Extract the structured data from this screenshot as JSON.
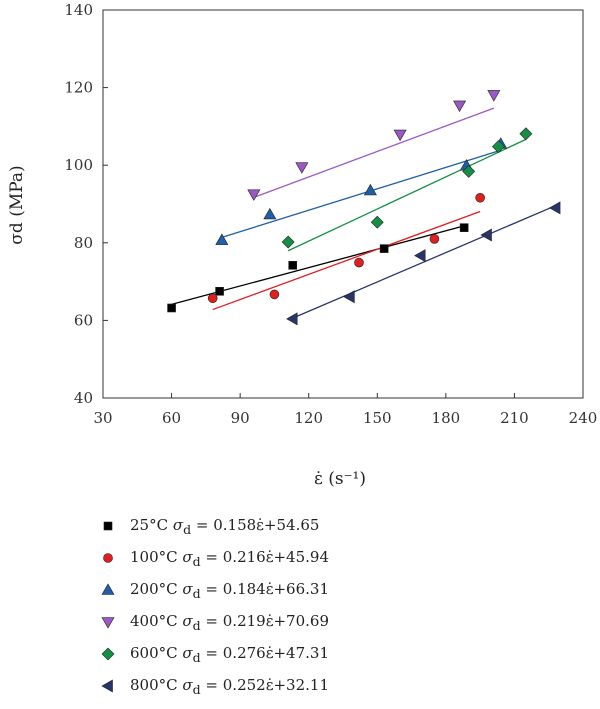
{
  "chart_data": {
    "type": "scatter",
    "xlabel": "ε̇ (s⁻¹)",
    "ylabel": "σd (MPa)",
    "xlim": [
      30,
      240
    ],
    "ylim": [
      40,
      140
    ],
    "xticks": [
      30,
      60,
      90,
      120,
      150,
      180,
      210,
      240
    ],
    "yticks": [
      40,
      60,
      80,
      100,
      120,
      140
    ],
    "grid": false,
    "legend_position": "below",
    "series": [
      {
        "name": "25°C σd = 0.158ε̇+54.65",
        "color": "#000000",
        "marker": "square",
        "points": [
          [
            60,
            63.2
          ],
          [
            81,
            67.5
          ],
          [
            113,
            74.2
          ],
          [
            153,
            78.5
          ],
          [
            188,
            83.9
          ]
        ],
        "fit": [
          [
            60,
            64.13
          ],
          [
            188,
            84.35
          ]
        ]
      },
      {
        "name": "100°C σd = 0.216ε̇+45.94",
        "color": "#e0201f",
        "marker": "circle",
        "points": [
          [
            78,
            65.7
          ],
          [
            105,
            66.7
          ],
          [
            142,
            74.9
          ],
          [
            175,
            81.0
          ],
          [
            195,
            91.6
          ]
        ],
        "fit": [
          [
            78,
            62.79
          ],
          [
            195,
            88.06
          ]
        ]
      },
      {
        "name": "200°C σd = 0.184ε̇+66.31",
        "color": "#1f5fa8",
        "marker": "triangle-up",
        "points": [
          [
            82,
            80.7
          ],
          [
            103,
            87.3
          ],
          [
            147,
            93.5
          ],
          [
            189,
            99.9
          ],
          [
            204,
            105.5
          ]
        ],
        "fit": [
          [
            82,
            81.4
          ],
          [
            204,
            103.85
          ]
        ]
      },
      {
        "name": "400°C σd = 0.219ε̇+70.69",
        "color": "#9b59c6",
        "marker": "triangle-down",
        "points": [
          [
            96,
            92.5
          ],
          [
            117,
            99.5
          ],
          [
            160,
            107.9
          ],
          [
            186,
            115.4
          ],
          [
            201,
            118.1
          ]
        ],
        "fit": [
          [
            96,
            91.71
          ],
          [
            201,
            114.71
          ]
        ]
      },
      {
        "name": "600°C σd = 0.276ε̇+47.31",
        "color": "#149046",
        "marker": "diamond",
        "points": [
          [
            111,
            80.2
          ],
          [
            150,
            85.3
          ],
          [
            190,
            98.4
          ],
          [
            203,
            104.8
          ],
          [
            215,
            108.1
          ]
        ],
        "fit": [
          [
            111,
            77.95
          ],
          [
            215,
            106.65
          ]
        ]
      },
      {
        "name": "800°C σd = 0.252ε̇+32.11",
        "color": "#27356b",
        "marker": "triangle-left",
        "points": [
          [
            113,
            60.4
          ],
          [
            138,
            66.1
          ],
          [
            169,
            76.7
          ],
          [
            198,
            82.0
          ],
          [
            228,
            89.0
          ]
        ],
        "fit": [
          [
            113,
            60.59
          ],
          [
            228,
            89.57
          ]
        ]
      }
    ],
    "legend": [
      {
        "prefix": "25°C ",
        "formula": "= 0.158ε̇+54.65"
      },
      {
        "prefix": "100°C ",
        "formula": "= 0.216ε̇+45.94"
      },
      {
        "prefix": "200°C ",
        "formula": "= 0.184ε̇+66.31"
      },
      {
        "prefix": "400°C ",
        "formula": "= 0.219ε̇+70.69"
      },
      {
        "prefix": "600°C ",
        "formula": "= 0.276ε̇+47.31"
      },
      {
        "prefix": "800°C ",
        "formula": "= 0.252ε̇+32.11"
      }
    ]
  }
}
